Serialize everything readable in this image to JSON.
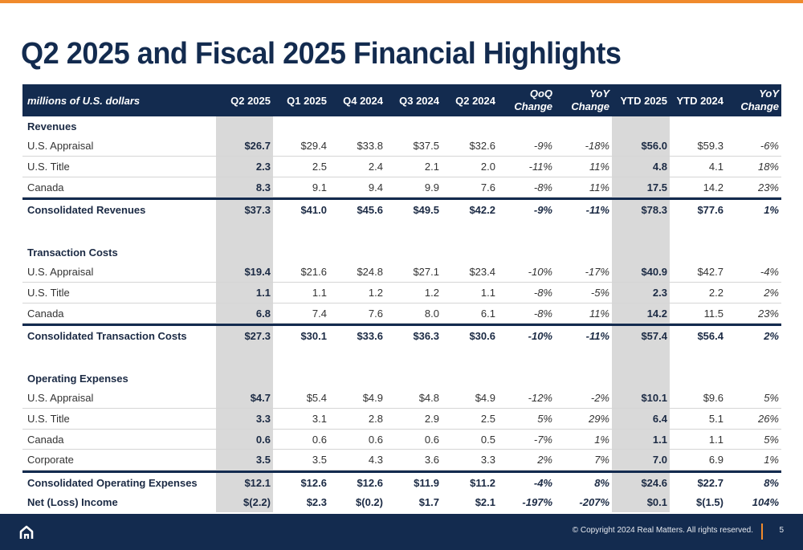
{
  "title": "Q2 2025 and Fiscal 2025 Financial Highlights",
  "table": {
    "header": {
      "label": "millions of U.S. dollars",
      "cols": [
        "Q2 2025",
        "Q1 2025",
        "Q4 2024",
        "Q3 2024",
        "Q2 2024",
        "QoQ Change",
        "YoY Change",
        "YTD 2025",
        "YTD 2024",
        "YoY Change"
      ],
      "col_lines": [
        [
          "Q2 2025"
        ],
        [
          "Q1 2025"
        ],
        [
          "Q4 2024"
        ],
        [
          "Q3 2024"
        ],
        [
          "Q2 2024"
        ],
        [
          "QoQ",
          "Change"
        ],
        [
          "YoY",
          "Change"
        ],
        [
          "YTD 2025"
        ],
        [
          "YTD 2024"
        ],
        [
          "YoY",
          "Change"
        ]
      ]
    },
    "rows": [
      {
        "type": "section",
        "label": "Revenues"
      },
      {
        "type": "data",
        "label": "U.S. Appraisal",
        "values": [
          "$26.7",
          "$29.4",
          "$33.8",
          "$37.5",
          "$32.6",
          "-9%",
          "-18%",
          "$56.0",
          "$59.3",
          "-6%"
        ]
      },
      {
        "type": "data",
        "label": "U.S. Title",
        "values": [
          "2.3",
          "2.5",
          "2.4",
          "2.1",
          "2.0",
          "-11%",
          "11%",
          "4.8",
          "4.1",
          "18%"
        ]
      },
      {
        "type": "data",
        "label": "Canada",
        "values": [
          "8.3",
          "9.1",
          "9.4",
          "9.9",
          "7.6",
          "-8%",
          "11%",
          "17.5",
          "14.2",
          "23%"
        ]
      },
      {
        "type": "total",
        "label": "Consolidated Revenues",
        "values": [
          "$37.3",
          "$41.0",
          "$45.6",
          "$49.5",
          "$42.2",
          "-9%",
          "-11%",
          "$78.3",
          "$77.6",
          "1%"
        ]
      },
      {
        "type": "gap"
      },
      {
        "type": "section",
        "label": "Transaction Costs"
      },
      {
        "type": "data",
        "label": "U.S. Appraisal",
        "values": [
          "$19.4",
          "$21.6",
          "$24.8",
          "$27.1",
          "$23.4",
          "-10%",
          "-17%",
          "$40.9",
          "$42.7",
          "-4%"
        ]
      },
      {
        "type": "data",
        "label": "U.S. Title",
        "values": [
          "1.1",
          "1.1",
          "1.2",
          "1.2",
          "1.1",
          "-8%",
          "-5%",
          "2.3",
          "2.2",
          "2%"
        ]
      },
      {
        "type": "data",
        "label": "Canada",
        "values": [
          "6.8",
          "7.4",
          "7.6",
          "8.0",
          "6.1",
          "-8%",
          "11%",
          "14.2",
          "11.5",
          "23%"
        ]
      },
      {
        "type": "total",
        "label": "Consolidated Transaction Costs",
        "values": [
          "$27.3",
          "$30.1",
          "$33.6",
          "$36.3",
          "$30.6",
          "-10%",
          "-11%",
          "$57.4",
          "$56.4",
          "2%"
        ]
      },
      {
        "type": "gap"
      },
      {
        "type": "section",
        "label": "Operating Expenses"
      },
      {
        "type": "data",
        "label": "U.S. Appraisal",
        "values": [
          "$4.7",
          "$5.4",
          "$4.9",
          "$4.8",
          "$4.9",
          "-12%",
          "-2%",
          "$10.1",
          "$9.6",
          "5%"
        ]
      },
      {
        "type": "data",
        "label": "U.S. Title",
        "values": [
          "3.3",
          "3.1",
          "2.8",
          "2.9",
          "2.5",
          "5%",
          "29%",
          "6.4",
          "5.1",
          "26%"
        ]
      },
      {
        "type": "data",
        "label": "Canada",
        "values": [
          "0.6",
          "0.6",
          "0.6",
          "0.6",
          "0.5",
          "-7%",
          "1%",
          "1.1",
          "1.1",
          "5%"
        ]
      },
      {
        "type": "data",
        "label": "Corporate",
        "values": [
          "3.5",
          "3.5",
          "4.3",
          "3.6",
          "3.3",
          "2%",
          "7%",
          "7.0",
          "6.9",
          "1%"
        ]
      },
      {
        "type": "total",
        "label": "Consolidated Operating Expenses",
        "values": [
          "$12.1",
          "$12.6",
          "$12.6",
          "$11.9",
          "$11.2",
          "-4%",
          "8%",
          "$24.6",
          "$22.7",
          "8%"
        ]
      },
      {
        "type": "last",
        "label": "Net (Loss) Income",
        "values": [
          "$(2.2)",
          "$2.3",
          "$(0.2)",
          "$1.7",
          "$2.1",
          "-197%",
          "-207%",
          "$0.1",
          "$(1.5)",
          "104%"
        ]
      }
    ]
  },
  "footer": {
    "copyright": "© Copyright 2024 Real Matters. All rights reserved.",
    "page_number": "5",
    "logo_icon": "house-logo-icon"
  },
  "colors": {
    "navy": "#132b4f",
    "accent": "#f08a2c",
    "shade": "#d9d9d9"
  }
}
